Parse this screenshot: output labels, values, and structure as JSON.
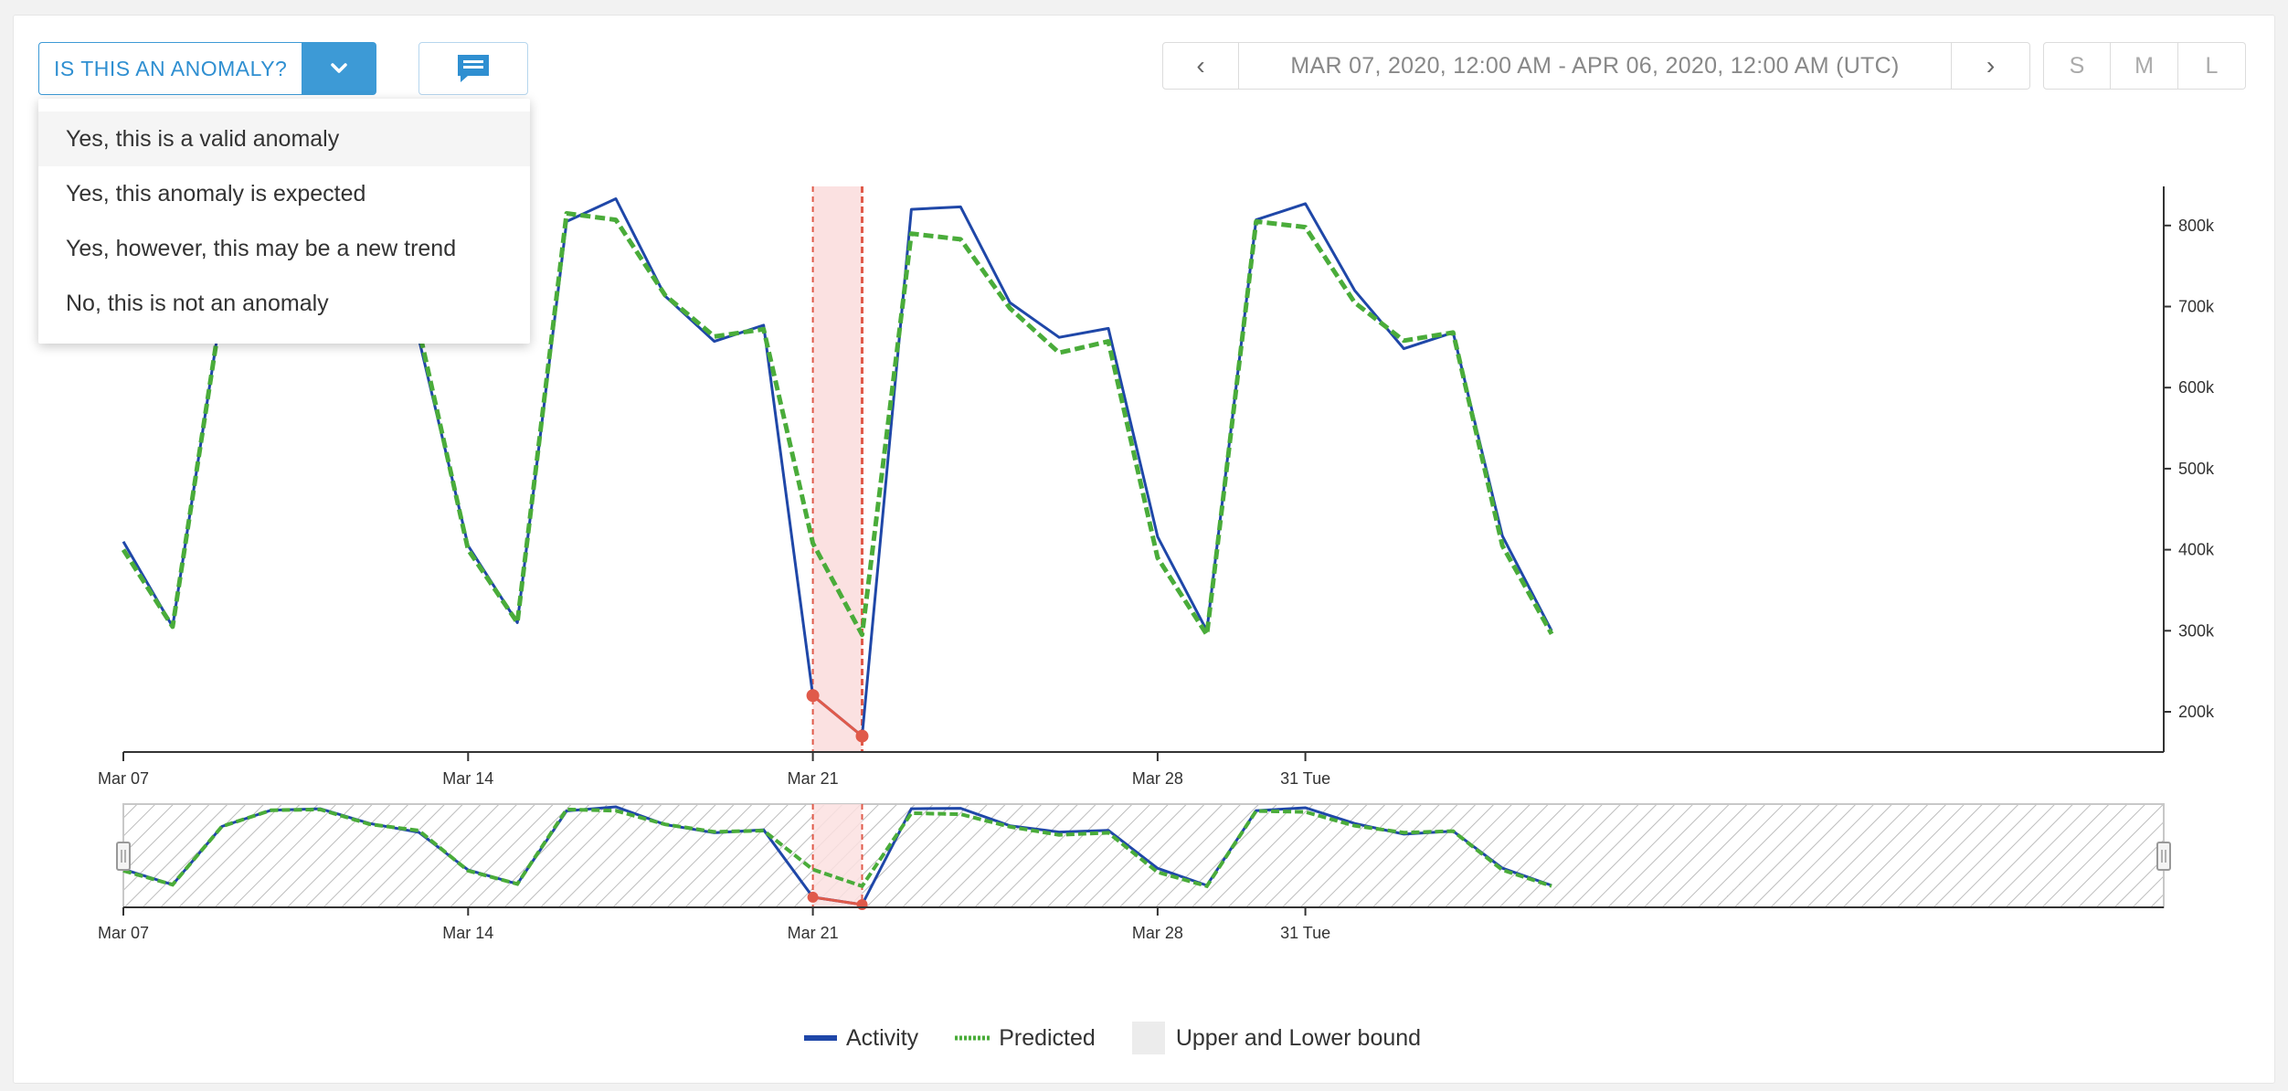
{
  "toolbar": {
    "anomaly_question": "IS THIS AN ANOMALY?",
    "date_range": "MAR 07, 2020, 12:00 AM - APR 06, 2020, 12:00 AM (UTC)",
    "prev_label": "‹",
    "next_label": "›",
    "sizes": [
      "S",
      "M",
      "L"
    ]
  },
  "dropdown": {
    "items": [
      "Yes, this is a valid anomaly",
      "Yes, this anomaly is expected",
      "Yes, however, this may be a new trend",
      "No, this is not an anomaly"
    ]
  },
  "colors": {
    "activity": "#1f47a8",
    "predicted": "#4aac3a",
    "anomaly": "#e05a4a",
    "anomaly_band": "#fbe1e1",
    "accent": "#3d9ad6"
  },
  "chart_data": {
    "type": "line",
    "x": [
      "Mar 07",
      "Mar 08",
      "Mar 09",
      "Mar 10",
      "Mar 11",
      "Mar 12",
      "Mar 13",
      "Mar 14",
      "Mar 15",
      "Mar 16",
      "Mar 17",
      "Mar 18",
      "Mar 19",
      "Mar 20",
      "Mar 21",
      "Mar 22",
      "Mar 23",
      "Mar 24",
      "Mar 25",
      "Mar 26",
      "Mar 27",
      "Mar 28",
      "Mar 29",
      "Mar 30",
      "Mar 31",
      "Apr 01",
      "Apr 02",
      "Apr 03",
      "Apr 04",
      "Apr 05",
      "Apr 06"
    ],
    "series": [
      {
        "name": "Activity",
        "values": [
          410000,
          305000,
          700000,
          810000,
          820000,
          720000,
          660000,
          405000,
          310000,
          805000,
          833000,
          713000,
          657000,
          677000,
          220000,
          170000,
          820000,
          823000,
          705000,
          662000,
          673000,
          416000,
          300000,
          807000,
          827000,
          720000,
          648000,
          668000,
          417000,
          300000,
          null
        ]
      },
      {
        "name": "Predicted",
        "values": [
          400000,
          305000,
          700000,
          810000,
          815000,
          715000,
          672000,
          400000,
          310000,
          815000,
          807000,
          714000,
          663000,
          672000,
          408000,
          295000,
          790000,
          783000,
          698000,
          643000,
          657000,
          390000,
          295000,
          805000,
          798000,
          705000,
          658000,
          668000,
          405000,
          296000,
          null
        ]
      }
    ],
    "anomaly_range": [
      "Mar 21",
      "Mar 22"
    ],
    "anomaly_points": [
      {
        "x": "Mar 21",
        "y": 220000
      },
      {
        "x": "Mar 22",
        "y": 170000
      }
    ],
    "ylim": [
      150000,
      870000
    ],
    "y_ticks": [
      200000,
      300000,
      400000,
      500000,
      600000,
      700000,
      800000
    ],
    "y_tick_labels": [
      "200k",
      "300k",
      "400k",
      "500k",
      "600k",
      "700k",
      "800k"
    ],
    "x_tick_labels": [
      {
        "x": "Mar 07",
        "label": "Mar 07"
      },
      {
        "x": "Mar 14",
        "label": "Mar 14"
      },
      {
        "x": "Mar 21",
        "label": "Mar 21"
      },
      {
        "x": "Mar 28",
        "label": "Mar 28"
      },
      {
        "x": "Mar 31",
        "label": "31 Tue"
      }
    ],
    "legend": [
      "Activity",
      "Predicted",
      "Upper and Lower bound"
    ],
    "legend_position": "bottom-center"
  }
}
